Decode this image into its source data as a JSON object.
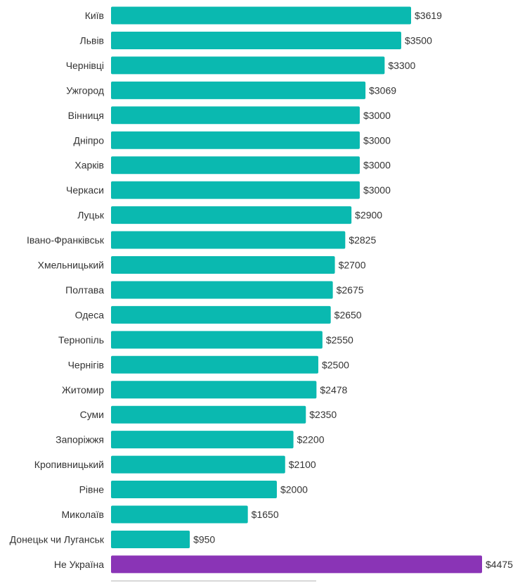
{
  "chart_data": {
    "type": "bar",
    "orientation": "horizontal",
    "title": "",
    "xlabel": "",
    "ylabel": "",
    "value_prefix": "$",
    "xlim": [
      0,
      4475
    ],
    "grid": false,
    "legend": "none",
    "colors": {
      "default": "#0ab9b0",
      "highlight": "#8a34b6",
      "baseline": "#b7b7b7"
    },
    "categories": [
      "Київ",
      "Львів",
      "Чернівці",
      "Ужгород",
      "Вінниця",
      "Дніпро",
      "Харків",
      "Черкаси",
      "Луцьк",
      "Івано-Франківськ",
      "Хмельницький",
      "Полтава",
      "Одеса",
      "Тернопіль",
      "Чернігів",
      "Житомир",
      "Суми",
      "Запоріжжя",
      "Кропивницький",
      "Рівне",
      "Миколаїв",
      "Донецьк чи Луганськ",
      "Не Україна"
    ],
    "values": [
      3619,
      3500,
      3300,
      3069,
      3000,
      3000,
      3000,
      3000,
      2900,
      2825,
      2700,
      2675,
      2650,
      2550,
      2500,
      2478,
      2350,
      2200,
      2100,
      2000,
      1650,
      950,
      4475
    ],
    "highlighted": [
      "Не Україна"
    ]
  }
}
